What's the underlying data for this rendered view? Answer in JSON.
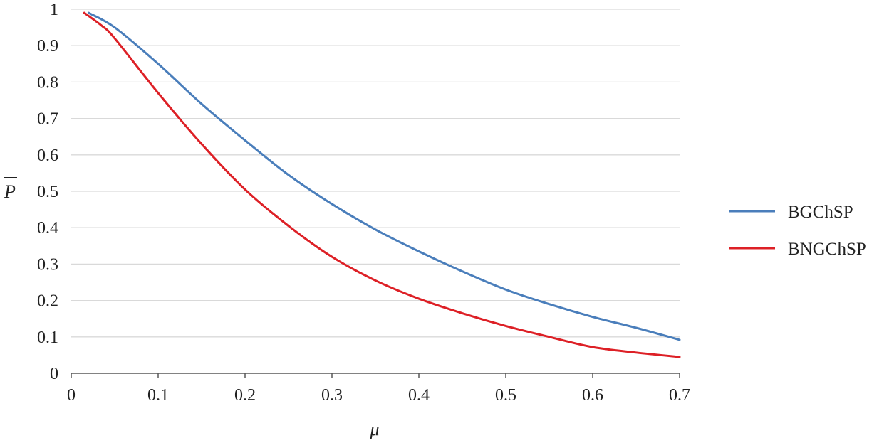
{
  "chart_data": {
    "type": "line",
    "xlabel": "μ",
    "ylabel": "P",
    "xlim": [
      0,
      0.7
    ],
    "ylim": [
      0,
      1
    ],
    "xticks": [
      "0",
      "0.1",
      "0.2",
      "0.3",
      "0.4",
      "0.5",
      "0.6",
      "0.7"
    ],
    "yticks": [
      "0",
      "0.1",
      "0.2",
      "0.3",
      "0.4",
      "0.5",
      "0.6",
      "0.7",
      "0.8",
      "0.9",
      "1"
    ],
    "grid": "horizontal",
    "legend_position": "right",
    "series": [
      {
        "name": "BGChSP",
        "color": "#4a7ebb",
        "x": [
          0.02,
          0.05,
          0.1,
          0.15,
          0.2,
          0.25,
          0.3,
          0.35,
          0.4,
          0.45,
          0.5,
          0.55,
          0.6,
          0.65,
          0.7
        ],
        "y": [
          0.99,
          0.95,
          0.85,
          0.74,
          0.64,
          0.545,
          0.465,
          0.395,
          0.335,
          0.28,
          0.23,
          0.19,
          0.155,
          0.125,
          0.092
        ]
      },
      {
        "name": "BNGChSP",
        "color": "#dd2026",
        "x": [
          0.015,
          0.035,
          0.05,
          0.1,
          0.15,
          0.2,
          0.25,
          0.3,
          0.35,
          0.4,
          0.45,
          0.5,
          0.55,
          0.6,
          0.65,
          0.7
        ],
        "y": [
          0.99,
          0.955,
          0.92,
          0.77,
          0.63,
          0.505,
          0.405,
          0.32,
          0.255,
          0.205,
          0.165,
          0.13,
          0.1,
          0.072,
          0.057,
          0.045
        ]
      }
    ]
  }
}
